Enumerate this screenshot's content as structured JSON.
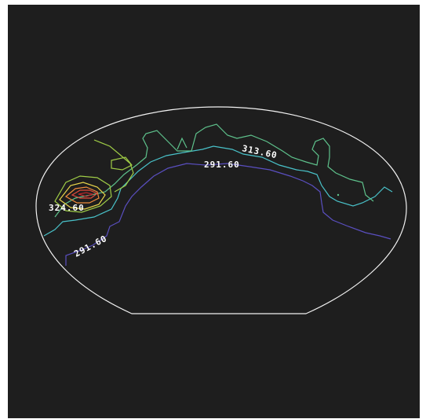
{
  "chart_data": {
    "type": "contour",
    "title": "",
    "xlabel": "",
    "ylabel": "",
    "boundary": {
      "shape": "ellipse with truncated bottom edge",
      "stroke_color": "#f2f2f2"
    },
    "background_color": "#1e1e1e",
    "levels": [
      {
        "value": 291.6,
        "color": "#5a4fc0"
      },
      {
        "value": 302.6,
        "color": "#49c2c9"
      },
      {
        "value": 313.6,
        "color": "#5ec28c"
      },
      {
        "value": 318.6,
        "color": "#9fcc46"
      },
      {
        "value": 324.6,
        "color": "#e7d44a"
      },
      {
        "value": 330.6,
        "color": "#ef8b3c"
      },
      {
        "value": 336.6,
        "color": "#e24a3a"
      }
    ],
    "labels": [
      {
        "text": "324.60",
        "level": 324.6
      },
      {
        "text": "313.60",
        "level": 313.6
      },
      {
        "text": "291.60",
        "level": 291.6
      },
      {
        "text": "291.60",
        "level": 291.6
      }
    ]
  }
}
